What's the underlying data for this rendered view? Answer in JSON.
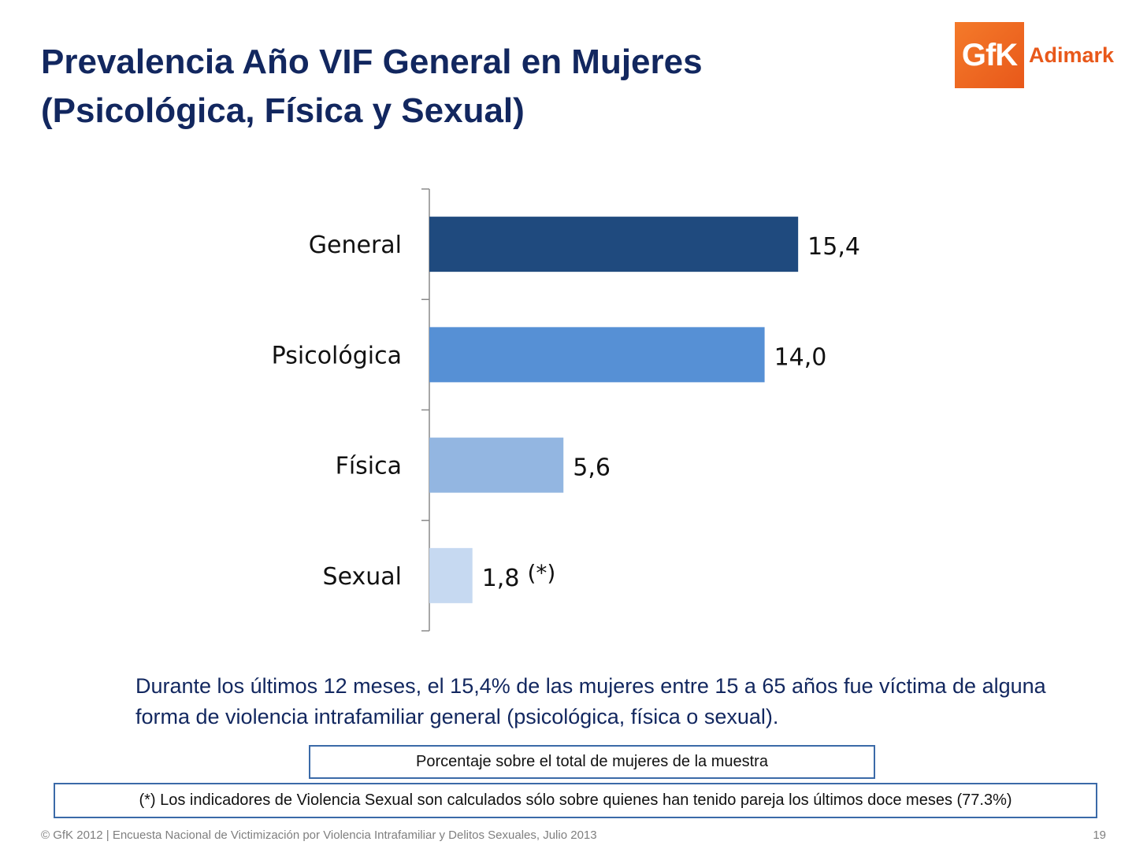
{
  "slide": {
    "title_line1": "Prevalencia Año VIF General en Mujeres",
    "title_line2": "(Psicológica, Física y Sexual)",
    "logo_mark": "GfK",
    "logo_text": "Adimark",
    "summary": "Durante los últimos 12 meses, el 15,4% de las mujeres entre 15 a 65 años fue víctima de alguna forma de violencia intrafamiliar general (psicológica, física o sexual).",
    "note": "Porcentaje sobre el total de mujeres de la muestra",
    "footnote": "(*) Los indicadores de  Violencia Sexual son calculados sólo sobre quienes han tenido pareja los últimos doce meses (77.3%)",
    "footer": "© GfK 2012 | Encuesta Nacional de Victimización por Violencia Intrafamiliar y Delitos Sexuales, Julio 2013",
    "page_number": "19"
  },
  "chart_data": {
    "type": "bar",
    "orientation": "horizontal",
    "categories": [
      "General",
      "Psicológica",
      "Física",
      "Sexual"
    ],
    "values": [
      15.4,
      14.0,
      5.6,
      1.8
    ],
    "value_labels": [
      "15,4",
      "14,0",
      "5,6",
      "1,8"
    ],
    "label_suffixes": [
      "",
      "",
      "",
      "(*)"
    ],
    "colors": [
      "#1f4a7e",
      "#5690d5",
      "#93b6e1",
      "#c6d9f1"
    ],
    "xlim": [
      0,
      20
    ],
    "grid": false,
    "legend": "none"
  },
  "colors": {
    "title": "#12275f",
    "axis": "#8a8a8a",
    "box_border": "#3b6aa8",
    "brand_orange": "#e8581a"
  }
}
